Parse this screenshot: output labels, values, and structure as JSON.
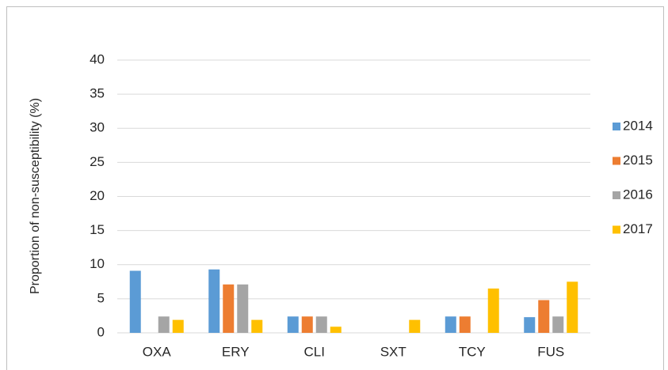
{
  "chart_data": {
    "type": "bar",
    "y_label": "Proportion of non-susceptibility (%)",
    "categories": [
      "OXA",
      "ERY",
      "CLI",
      "SXT",
      "TCY",
      "FUS"
    ],
    "series": [
      {
        "name": "2014",
        "color": "#5b9bd5",
        "values": [
          9.1,
          9.3,
          2.4,
          0,
          2.4,
          2.3
        ]
      },
      {
        "name": "2015",
        "color": "#ed7d31",
        "values": [
          0,
          7.1,
          2.4,
          0,
          2.4,
          4.8
        ]
      },
      {
        "name": "2016",
        "color": "#a5a5a5",
        "values": [
          2.4,
          7.1,
          2.4,
          0,
          0,
          2.4
        ]
      },
      {
        "name": "2017",
        "color": "#ffc000",
        "values": [
          1.9,
          1.9,
          0.9,
          1.9,
          6.5,
          7.5
        ]
      }
    ],
    "ylim": [
      0,
      40
    ],
    "yticks": [
      0,
      5,
      10,
      15,
      20,
      25,
      30,
      35,
      40
    ],
    "grid": true,
    "legend": "right"
  }
}
